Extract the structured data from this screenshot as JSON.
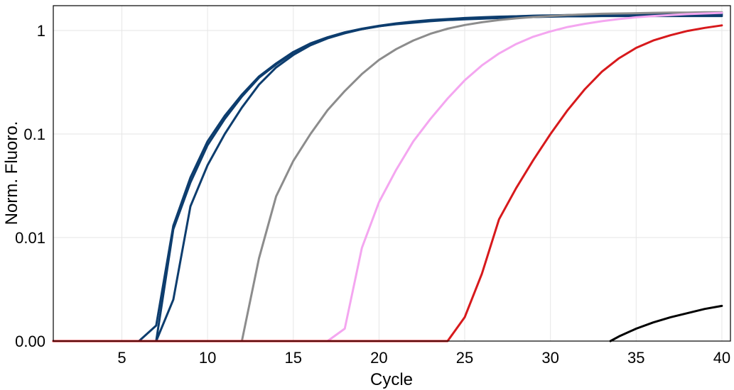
{
  "chart_data": {
    "type": "line",
    "title": "",
    "xlabel": "Cycle",
    "ylabel": "Norm. Fluoro.",
    "xlim": [
      1,
      40.5
    ],
    "x_ticks": [
      5,
      10,
      15,
      20,
      25,
      30,
      35,
      40
    ],
    "x_tick_labels": [
      "5",
      "10",
      "15",
      "20",
      "25",
      "30",
      "35",
      "40"
    ],
    "y_scale": "log (with zero baseline at bottom)",
    "y_ticks": [
      0,
      0.01,
      0.1,
      1
    ],
    "y_tick_labels": [
      "0.00",
      "0.01",
      "0.1",
      "1"
    ],
    "grid": true,
    "legend": "none",
    "series": [
      {
        "color": "#0d3d6e",
        "x": [
          1,
          2,
          3,
          4,
          5,
          6,
          7,
          8,
          9,
          10,
          11,
          12,
          13,
          14,
          15,
          16,
          17,
          18,
          19,
          20,
          21,
          22,
          23,
          24,
          25,
          26,
          27,
          28,
          29,
          30,
          31,
          32,
          33,
          34,
          35,
          36,
          37,
          38,
          39,
          40
        ],
        "y": [
          0,
          0,
          0,
          0,
          0,
          0,
          0.0015,
          0.013,
          0.038,
          0.085,
          0.15,
          0.24,
          0.36,
          0.48,
          0.62,
          0.75,
          0.86,
          0.96,
          1.04,
          1.11,
          1.17,
          1.22,
          1.26,
          1.29,
          1.32,
          1.34,
          1.36,
          1.37,
          1.39,
          1.4,
          1.41,
          1.42,
          1.43,
          1.44,
          1.45,
          1.45,
          1.46,
          1.46,
          1.47,
          1.47
        ]
      },
      {
        "color": "#0d3d6e",
        "x": [
          1,
          2,
          3,
          4,
          5,
          6,
          7,
          8,
          9,
          10,
          11,
          12,
          13,
          14,
          15,
          16,
          17,
          18,
          19,
          20,
          21,
          22,
          23,
          24,
          25,
          26,
          27,
          28,
          29,
          30,
          31,
          32,
          33,
          34,
          35,
          36,
          37,
          38,
          39,
          40
        ],
        "y": [
          0,
          0,
          0,
          0,
          0,
          0,
          0,
          0.012,
          0.034,
          0.078,
          0.14,
          0.23,
          0.35,
          0.47,
          0.61,
          0.74,
          0.85,
          0.95,
          1.03,
          1.1,
          1.15,
          1.19,
          1.23,
          1.26,
          1.28,
          1.3,
          1.32,
          1.33,
          1.35,
          1.36,
          1.37,
          1.37,
          1.38,
          1.38,
          1.38,
          1.38,
          1.38,
          1.38,
          1.38,
          1.38
        ]
      },
      {
        "color": "#0d3d6e",
        "x": [
          1,
          2,
          3,
          4,
          5,
          6,
          7,
          8,
          9,
          10,
          11,
          12,
          13,
          14,
          15,
          16,
          17,
          18,
          19,
          20,
          21,
          22,
          23,
          24,
          25,
          26,
          27,
          28,
          29,
          30,
          31,
          32,
          33,
          34,
          35,
          36,
          37,
          38,
          39,
          40
        ],
        "y": [
          0,
          0,
          0,
          0,
          0,
          0,
          0,
          0.004,
          0.02,
          0.05,
          0.1,
          0.18,
          0.3,
          0.44,
          0.58,
          0.72,
          0.84,
          0.94,
          1.03,
          1.1,
          1.16,
          1.21,
          1.25,
          1.28,
          1.31,
          1.33,
          1.35,
          1.37,
          1.38,
          1.39,
          1.4,
          1.41,
          1.41,
          1.41,
          1.42,
          1.42,
          1.42,
          1.42,
          1.42,
          1.42
        ]
      },
      {
        "color": "#8c8c8c",
        "x": [
          1,
          2,
          3,
          4,
          5,
          6,
          7,
          8,
          9,
          10,
          11,
          12,
          13,
          14,
          15,
          16,
          17,
          18,
          19,
          20,
          21,
          22,
          23,
          24,
          25,
          26,
          27,
          28,
          29,
          30,
          31,
          32,
          33,
          34,
          35,
          36,
          37,
          38,
          39,
          40
        ],
        "y": [
          0,
          0,
          0,
          0,
          0,
          0,
          0,
          0,
          0,
          0,
          0,
          0,
          0.008,
          0.025,
          0.055,
          0.1,
          0.17,
          0.26,
          0.38,
          0.52,
          0.66,
          0.8,
          0.93,
          1.04,
          1.13,
          1.2,
          1.26,
          1.31,
          1.35,
          1.38,
          1.41,
          1.43,
          1.45,
          1.46,
          1.47,
          1.48,
          1.49,
          1.49,
          1.5,
          1.5
        ]
      },
      {
        "color": "#f4a6f0",
        "x": [
          1,
          2,
          3,
          4,
          5,
          6,
          7,
          8,
          9,
          10,
          11,
          12,
          13,
          14,
          15,
          16,
          17,
          18,
          19,
          20,
          21,
          22,
          23,
          24,
          25,
          26,
          27,
          28,
          29,
          30,
          31,
          32,
          33,
          34,
          35,
          36,
          37,
          38,
          39,
          40
        ],
        "y": [
          0,
          0,
          0,
          0,
          0,
          0,
          0,
          0,
          0,
          0,
          0,
          0,
          0,
          0,
          0,
          0,
          0,
          0.0012,
          0.009,
          0.022,
          0.045,
          0.085,
          0.14,
          0.22,
          0.33,
          0.46,
          0.6,
          0.74,
          0.87,
          0.98,
          1.08,
          1.16,
          1.23,
          1.29,
          1.34,
          1.38,
          1.41,
          1.44,
          1.46,
          1.48
        ]
      },
      {
        "color": "#d7191c",
        "x": [
          1,
          2,
          3,
          4,
          5,
          6,
          7,
          8,
          9,
          10,
          11,
          12,
          13,
          14,
          15,
          16,
          17,
          18,
          19,
          20,
          21,
          22,
          23,
          24,
          25,
          26,
          27,
          28,
          29,
          30,
          31,
          32,
          33,
          34,
          35,
          36,
          37,
          38,
          39,
          40
        ],
        "y": [
          0,
          0,
          0,
          0,
          0,
          0,
          0,
          0,
          0,
          0,
          0,
          0,
          0,
          0,
          0,
          0,
          0,
          0,
          0,
          0,
          0,
          0,
          0,
          0,
          0.0023,
          0.0065,
          0.015,
          0.03,
          0.056,
          0.1,
          0.17,
          0.27,
          0.4,
          0.54,
          0.68,
          0.8,
          0.9,
          0.99,
          1.06,
          1.12
        ]
      },
      {
        "color": "#000000",
        "x": [
          33.5,
          34,
          35,
          36,
          37,
          38,
          39,
          40
        ],
        "y": [
          0,
          0.00045,
          0.0012,
          0.0018,
          0.0023,
          0.0027,
          0.0031,
          0.0034
        ]
      }
    ]
  }
}
